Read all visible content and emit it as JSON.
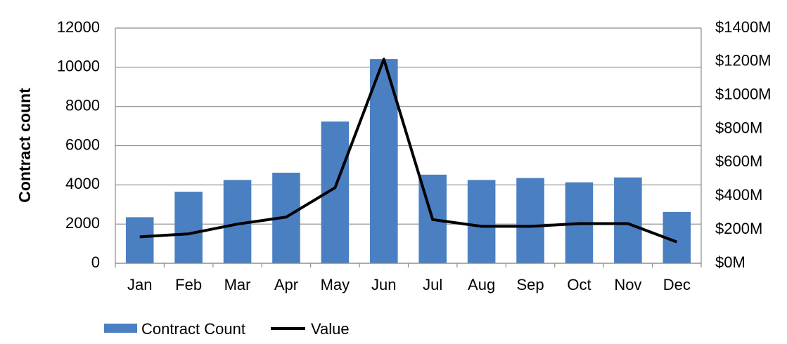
{
  "chart_data": {
    "type": "bar",
    "categories": [
      "Jan",
      "Feb",
      "Mar",
      "Apr",
      "May",
      "Jun",
      "Jul",
      "Aug",
      "Sep",
      "Oct",
      "Nov",
      "Dec"
    ],
    "series": [
      {
        "name": "Contract Count",
        "type": "bar",
        "axis": "left",
        "color": "#4a7fc1",
        "values": [
          2350,
          3650,
          4250,
          4620,
          7230,
          10420,
          4520,
          4250,
          4350,
          4130,
          4380,
          2620
        ]
      },
      {
        "name": "Value",
        "type": "line",
        "axis": "right",
        "color": "#000000",
        "values": [
          157,
          175,
          233,
          275,
          450,
          1215,
          260,
          220,
          220,
          236,
          236,
          127
        ]
      }
    ],
    "ylabel": "Contract count",
    "ylim": [
      0,
      12000
    ],
    "yticks": [
      "0",
      "2000",
      "4000",
      "6000",
      "8000",
      "10000",
      "12000"
    ],
    "y2lim": [
      0,
      1400
    ],
    "y2ticks": [
      "$0M",
      "$200M",
      "$400M",
      "$600M",
      "$800M",
      "$1000M",
      "$1200M",
      "$1400M"
    ],
    "grid": true,
    "legend": "bottom-left"
  }
}
